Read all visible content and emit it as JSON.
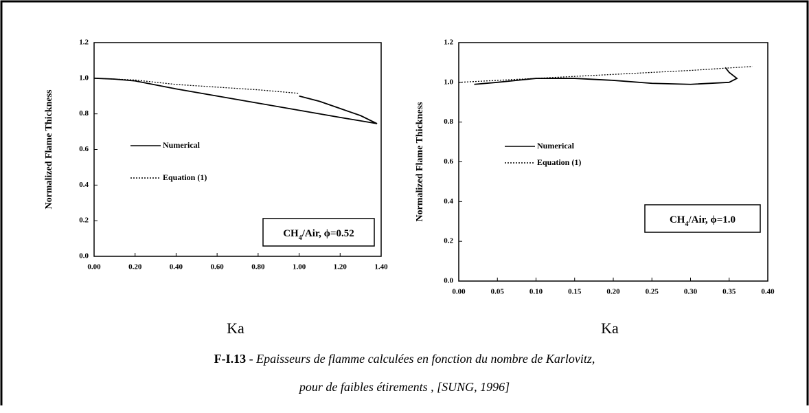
{
  "chart_data": [
    {
      "type": "line",
      "x_label": "Ka",
      "y_label": "Normalized Flame Thickness",
      "annotation": [
        "CH",
        "4",
        "/Air, ϕ=0.52"
      ],
      "xlim": [
        0,
        1.4
      ],
      "ylim": [
        0,
        1.2
      ],
      "xticks": [
        {
          "value": 0,
          "label": "0.00"
        },
        {
          "value": 0.2,
          "label": "0.20"
        },
        {
          "value": 0.4,
          "label": "0.40"
        },
        {
          "value": 0.6,
          "label": "0.60"
        },
        {
          "value": 0.8,
          "label": "0.80"
        },
        {
          "value": 1.0,
          "label": "1.00"
        },
        {
          "value": 1.2,
          "label": "1.20"
        },
        {
          "value": 1.4,
          "label": "1.40"
        }
      ],
      "yticks": [
        {
          "value": 0,
          "label": "0.0"
        },
        0.2,
        0.4,
        0.6,
        0.8,
        {
          "value": 1.0,
          "label": "1.0"
        },
        1.2
      ],
      "series": [
        {
          "name": "Numerical",
          "color": "#000000",
          "dash": "solid",
          "x": [
            0,
            0.1,
            0.2,
            0.4,
            0.6,
            0.8,
            1.0,
            1.2,
            1.38,
            1.3,
            1.2,
            1.1,
            1.0
          ],
          "values": [
            1.0,
            0.995,
            0.985,
            0.94,
            0.9,
            0.86,
            0.82,
            0.78,
            0.745,
            0.79,
            0.83,
            0.87,
            0.9
          ]
        },
        {
          "name": "Equation (1)",
          "color": "#000000",
          "dash": "dotted",
          "x": [
            0,
            0.2,
            0.4,
            0.6,
            0.8,
            1.0
          ],
          "values": [
            1.0,
            0.99,
            0.965,
            0.95,
            0.935,
            0.915
          ]
        }
      ]
    },
    {
      "type": "line",
      "x_label": "Ka",
      "y_label": "Normalized Flame Thickness",
      "annotation": [
        "CH",
        "4",
        "/Air, ϕ=1.0"
      ],
      "xlim": [
        0,
        0.4
      ],
      "ylim": [
        0,
        1.2
      ],
      "xticks": [
        {
          "value": 0,
          "label": "0.00"
        },
        {
          "value": 0.05,
          "label": "0.05"
        },
        {
          "value": 0.1,
          "label": "0.10"
        },
        {
          "value": 0.15,
          "label": "0.15"
        },
        {
          "value": 0.2,
          "label": "0.20"
        },
        {
          "value": 0.25,
          "label": "0.25"
        },
        {
          "value": 0.3,
          "label": "0.30"
        },
        {
          "value": 0.35,
          "label": "0.35"
        },
        {
          "value": 0.4,
          "label": "0.40"
        }
      ],
      "yticks": [
        {
          "value": 0,
          "label": "0.0"
        },
        0.2,
        0.4,
        0.6,
        0.8,
        {
          "value": 1.0,
          "label": "1.0"
        },
        1.2
      ],
      "series": [
        {
          "name": "Numerical",
          "color": "#000000",
          "dash": "solid",
          "x": [
            0.02,
            0.05,
            0.1,
            0.15,
            0.2,
            0.25,
            0.3,
            0.35,
            0.36,
            0.35,
            0.345
          ],
          "values": [
            0.99,
            1.0,
            1.02,
            1.02,
            1.01,
            0.995,
            0.99,
            1.0,
            1.02,
            1.05,
            1.075
          ]
        },
        {
          "name": "Equation (1)",
          "color": "#000000",
          "dash": "dotted",
          "x": [
            0,
            0.1,
            0.2,
            0.3,
            0.38
          ],
          "values": [
            1.0,
            1.02,
            1.04,
            1.06,
            1.08
          ]
        }
      ]
    }
  ],
  "caption": {
    "label": "F-I.13",
    "separator": " - ",
    "line1": "Epaisseurs de flamme calculées en fonction du nombre de Karlovitz,",
    "line2": "pour de faibles étirements , [SUNG, 1996]"
  }
}
